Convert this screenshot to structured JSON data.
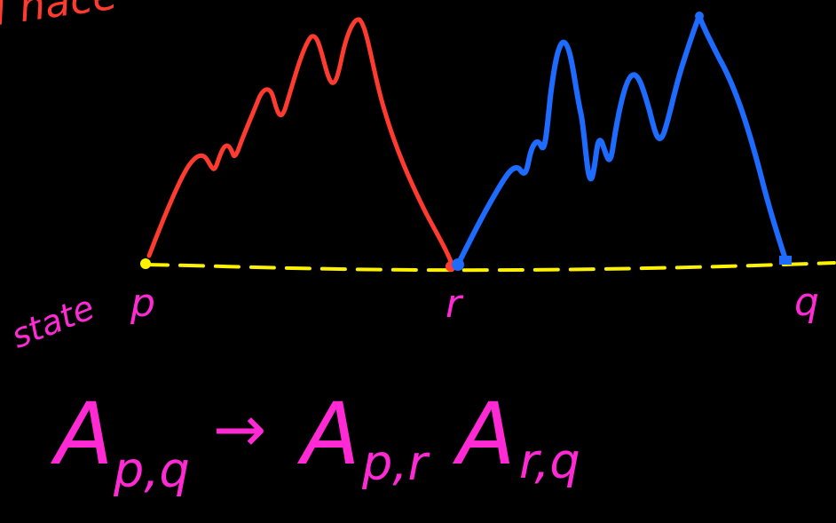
{
  "colors": {
    "background": "#000000",
    "red_curve": "#ff3b2f",
    "blue_curve": "#1e6bff",
    "yellow_line": "#fff200",
    "magenta_text": "#ff2ad4",
    "title_orange": "#ff3b2f"
  },
  "labels": {
    "title_fragment": "I hace",
    "state": "state",
    "p": "p",
    "r": "r",
    "q": "q"
  },
  "rule": {
    "lhs_main": "A",
    "lhs_sub": "p,q",
    "arrow": "→",
    "rhs1_main": "A",
    "rhs1_sub": "p,r",
    "rhs2_main": "A",
    "rhs2_sub": "r,q"
  }
}
